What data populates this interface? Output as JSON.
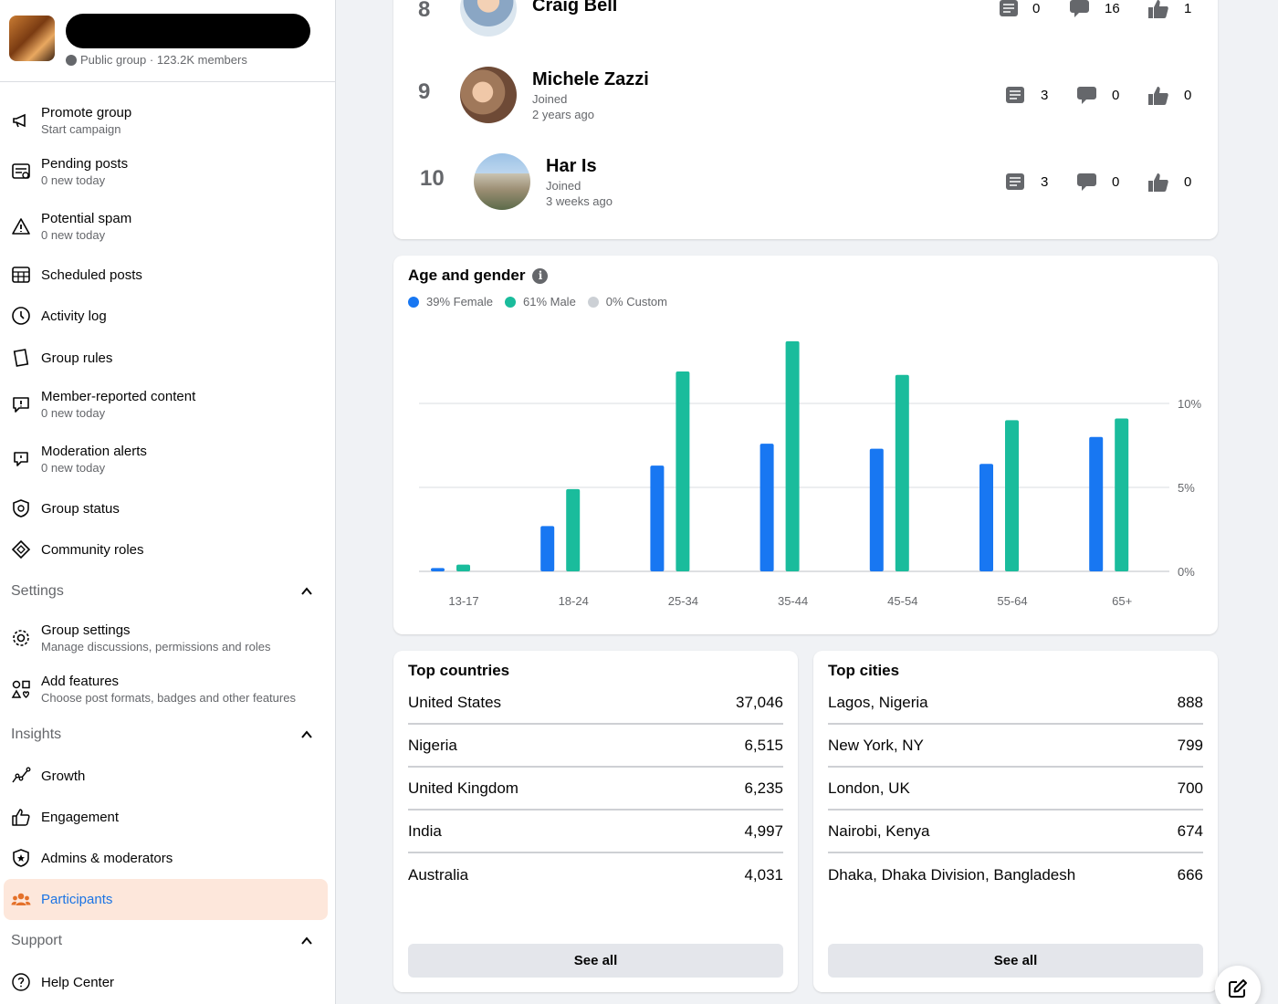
{
  "group": {
    "meta": "Public group · 123.2K members"
  },
  "sidebar": {
    "items_top": [
      {
        "title": "Promote group",
        "sub": "Start campaign",
        "icon": "megaphone-icon"
      },
      {
        "title": "Pending posts",
        "sub": "0 new today",
        "icon": "pending-posts-icon"
      },
      {
        "title": "Potential spam",
        "sub": "0 new today",
        "icon": "warning-icon"
      },
      {
        "title": "Scheduled posts",
        "sub": "",
        "icon": "calendar-icon"
      },
      {
        "title": "Activity log",
        "sub": "",
        "icon": "clock-icon"
      },
      {
        "title": "Group rules",
        "sub": "",
        "icon": "book-icon"
      },
      {
        "title": "Member-reported content",
        "sub": "0 new today",
        "icon": "report-icon"
      },
      {
        "title": "Moderation alerts",
        "sub": "0 new today",
        "icon": "alert-bubble-icon"
      },
      {
        "title": "Group status",
        "sub": "",
        "icon": "shield-icon"
      },
      {
        "title": "Community roles",
        "sub": "",
        "icon": "diamond-icon"
      }
    ],
    "settings_label": "Settings",
    "settings_items": [
      {
        "title": "Group settings",
        "sub": "Manage discussions, permissions and roles",
        "icon": "gear-icon"
      },
      {
        "title": "Add features",
        "sub": "Choose post formats, badges and other features",
        "icon": "shapes-icon"
      }
    ],
    "insights_label": "Insights",
    "insights_items": [
      {
        "title": "Growth",
        "icon": "growth-icon"
      },
      {
        "title": "Engagement",
        "icon": "thumbs-up-icon"
      },
      {
        "title": "Admins & moderators",
        "icon": "star-shield-icon"
      },
      {
        "title": "Participants",
        "icon": "people-icon",
        "active": true
      }
    ],
    "support_label": "Support",
    "support_items": [
      {
        "title": "Help Center",
        "icon": "help-icon"
      }
    ]
  },
  "members": [
    {
      "rank": "8",
      "name": "Craig Bell",
      "joined": "",
      "ago": "",
      "posts": "0",
      "comments": "16",
      "reactions": "1"
    },
    {
      "rank": "9",
      "name": "Michele Zazzi",
      "joined": "Joined",
      "ago": "2 years ago",
      "posts": "3",
      "comments": "0",
      "reactions": "0"
    },
    {
      "rank": "10",
      "name": "Har Is",
      "joined": "Joined",
      "ago": "3 weeks ago",
      "posts": "3",
      "comments": "0",
      "reactions": "0"
    }
  ],
  "age_gender": {
    "title": "Age and gender",
    "legend": [
      {
        "label": "39% Female",
        "color": "#1877f2"
      },
      {
        "label": "61% Male",
        "color": "#1abc9c"
      },
      {
        "label": "0% Custom",
        "color": "#ccd0d5"
      }
    ]
  },
  "chart_data": {
    "type": "bar",
    "categories": [
      "13-17",
      "18-24",
      "25-34",
      "35-44",
      "45-54",
      "55-64",
      "65+"
    ],
    "series": [
      {
        "name": "Female",
        "color": "#1877f2",
        "values": [
          0.2,
          2.7,
          6.3,
          7.6,
          7.3,
          6.4,
          8.0
        ]
      },
      {
        "name": "Male",
        "color": "#1abc9c",
        "values": [
          0.4,
          4.9,
          11.9,
          13.7,
          11.7,
          9.0,
          9.1
        ]
      },
      {
        "name": "Custom",
        "color": "#ccd0d5",
        "values": [
          0,
          0,
          0,
          0,
          0,
          0,
          0
        ]
      }
    ],
    "yticks": [
      "0%",
      "5%",
      "10%"
    ],
    "ylim": [
      0,
      14
    ],
    "grid": true
  },
  "countries": {
    "title": "Top countries",
    "rows": [
      {
        "name": "United States",
        "value": "37,046"
      },
      {
        "name": "Nigeria",
        "value": "6,515"
      },
      {
        "name": "United Kingdom",
        "value": "6,235"
      },
      {
        "name": "India",
        "value": "4,997"
      },
      {
        "name": "Australia",
        "value": "4,031"
      }
    ],
    "see_all": "See all"
  },
  "cities": {
    "title": "Top cities",
    "rows": [
      {
        "name": "Lagos, Nigeria",
        "value": "888"
      },
      {
        "name": "New York, NY",
        "value": "799"
      },
      {
        "name": "London, UK",
        "value": "700"
      },
      {
        "name": "Nairobi, Kenya",
        "value": "674"
      },
      {
        "name": "Dhaka, Dhaka Division, Bangladesh",
        "value": "666"
      }
    ],
    "see_all": "See all"
  }
}
